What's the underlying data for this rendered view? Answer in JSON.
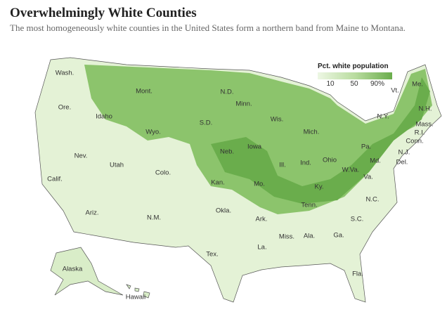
{
  "header": {
    "title": "Overwhelmingly White Counties",
    "subtitle": "The most homogeneously white counties in the United States form a northern band from Maine to Montana."
  },
  "legend": {
    "title": "Pct. white population",
    "labels": [
      "10",
      "50",
      "90%"
    ]
  },
  "state_labels": [
    "Wash.",
    "Mont.",
    "N.D.",
    "Minn.",
    "Ore.",
    "Idaho",
    "Wyo.",
    "S.D.",
    "Wis.",
    "Mich.",
    "Vt.",
    "Me.",
    "N.H.",
    "N.Y.",
    "Mass.",
    "R.I.",
    "Conn.",
    "Nev.",
    "Utah",
    "Colo.",
    "Neb.",
    "Iowa",
    "Ill.",
    "Ind.",
    "Ohio",
    "Pa.",
    "N.J.",
    "Md.",
    "Del.",
    "Calif.",
    "Kan.",
    "Mo.",
    "Ky.",
    "W.Va.",
    "Va.",
    "Ariz.",
    "N.M.",
    "Okla.",
    "Tenn.",
    "N.C.",
    "Ark.",
    "S.C.",
    "Miss.",
    "Ala.",
    "Ga.",
    "La.",
    "Tex.",
    "Fla.",
    "Alaska",
    "Hawaii"
  ]
}
